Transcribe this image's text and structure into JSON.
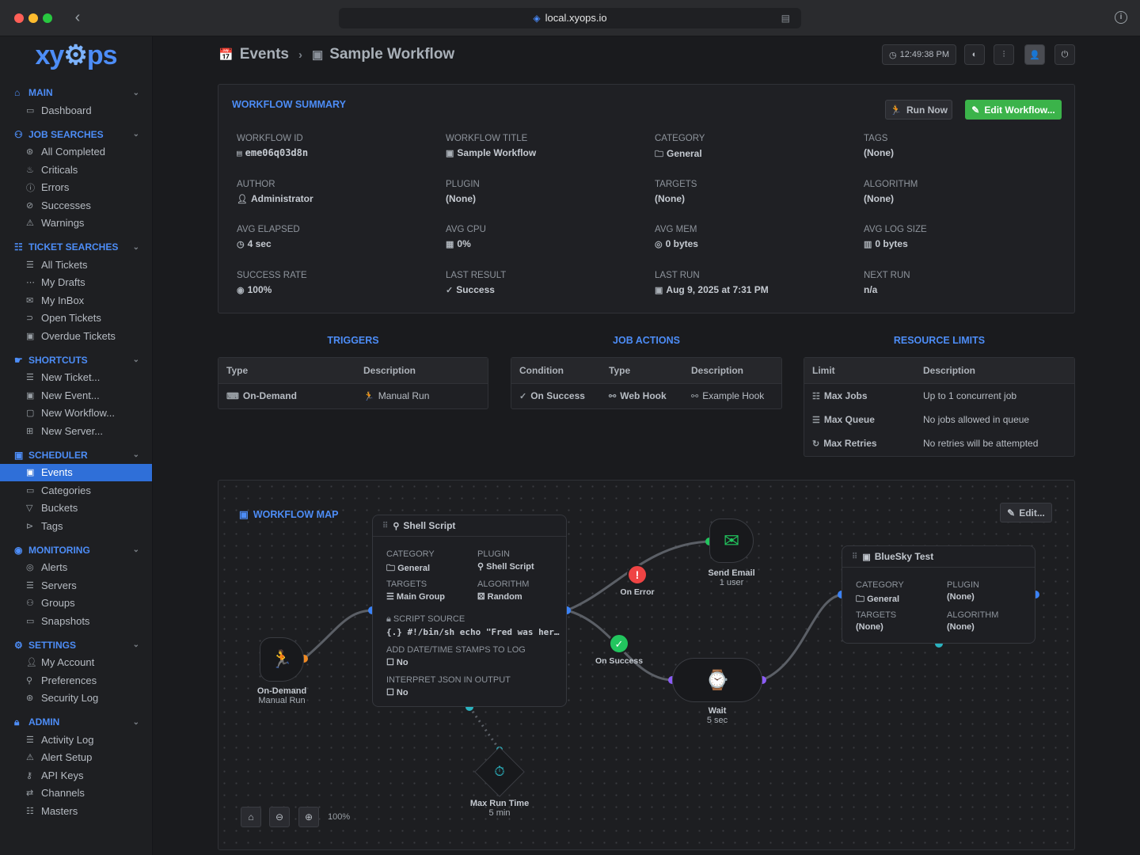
{
  "browser": {
    "url": "local.xyops.io"
  },
  "logo": {
    "text_a": "xy",
    "text_b": "ps"
  },
  "sidebar": {
    "sections": [
      {
        "title": "MAIN",
        "items": [
          "Dashboard"
        ]
      },
      {
        "title": "JOB SEARCHES",
        "items": [
          "All Completed",
          "Criticals",
          "Errors",
          "Successes",
          "Warnings"
        ]
      },
      {
        "title": "TICKET SEARCHES",
        "items": [
          "All Tickets",
          "My Drafts",
          "My InBox",
          "Open Tickets",
          "Overdue Tickets"
        ]
      },
      {
        "title": "SHORTCUTS",
        "items": [
          "New Ticket...",
          "New Event...",
          "New Workflow...",
          "New Server..."
        ]
      },
      {
        "title": "SCHEDULER",
        "items": [
          "Events",
          "Categories",
          "Buckets",
          "Tags"
        ]
      },
      {
        "title": "MONITORING",
        "items": [
          "Alerts",
          "Servers",
          "Groups",
          "Snapshots"
        ]
      },
      {
        "title": "SETTINGS",
        "items": [
          "My Account",
          "Preferences",
          "Security Log"
        ]
      },
      {
        "title": "ADMIN",
        "items": [
          "Activity Log",
          "Alert Setup",
          "API Keys",
          "Channels",
          "Masters"
        ]
      }
    ],
    "active_item": "Events"
  },
  "header": {
    "crumb_parent": "Events",
    "crumb_current": "Sample Workflow",
    "clock": "12:49:38 PM"
  },
  "summary": {
    "title": "WORKFLOW SUMMARY",
    "run_now": "Run Now",
    "edit_workflow": "Edit Workflow...",
    "fields": {
      "workflow_id": {
        "label": "WORKFLOW ID",
        "value": "eme06q03d8n"
      },
      "workflow_title": {
        "label": "WORKFLOW TITLE",
        "value": "Sample Workflow"
      },
      "category": {
        "label": "CATEGORY",
        "value": "General"
      },
      "tags": {
        "label": "TAGS",
        "value": "(None)"
      },
      "author": {
        "label": "AUTHOR",
        "value": "Administrator"
      },
      "plugin": {
        "label": "PLUGIN",
        "value": "(None)"
      },
      "targets": {
        "label": "TARGETS",
        "value": "(None)"
      },
      "algorithm": {
        "label": "ALGORITHM",
        "value": "(None)"
      },
      "avg_elapsed": {
        "label": "AVG ELAPSED",
        "value": "4 sec"
      },
      "avg_cpu": {
        "label": "AVG CPU",
        "value": "0%"
      },
      "avg_mem": {
        "label": "AVG MEM",
        "value": "0 bytes"
      },
      "avg_log": {
        "label": "AVG LOG SIZE",
        "value": "0 bytes"
      },
      "success_rate": {
        "label": "SUCCESS RATE",
        "value": "100%"
      },
      "last_result": {
        "label": "LAST RESULT",
        "value": "Success"
      },
      "last_run": {
        "label": "LAST RUN",
        "value": "Aug 9, 2025 at 7:31 PM"
      },
      "next_run": {
        "label": "NEXT RUN",
        "value": "n/a"
      }
    }
  },
  "triggers": {
    "title": "TRIGGERS",
    "headers": [
      "Type",
      "Description"
    ],
    "rows": [
      [
        "On-Demand",
        "Manual Run"
      ]
    ]
  },
  "job_actions": {
    "title": "JOB ACTIONS",
    "headers": [
      "Condition",
      "Type",
      "Description"
    ],
    "rows": [
      [
        "On Success",
        "Web Hook",
        "Example Hook"
      ]
    ]
  },
  "resource_limits": {
    "title": "RESOURCE LIMITS",
    "headers": [
      "Limit",
      "Description"
    ],
    "rows": [
      [
        "Max Jobs",
        "Up to 1 concurrent job"
      ],
      [
        "Max Queue",
        "No jobs allowed in queue"
      ],
      [
        "Max Retries",
        "No retries will be attempted"
      ]
    ]
  },
  "workflow_map": {
    "title": "WORKFLOW MAP",
    "edit": "Edit...",
    "zoom": "100%",
    "trigger_node": {
      "name": "On-Demand",
      "sub": "Manual Run"
    },
    "shell_node": {
      "title": "Shell Script",
      "category_label": "CATEGORY",
      "category": "General",
      "plugin_label": "PLUGIN",
      "plugin": "Shell Script",
      "targets_label": "TARGETS",
      "targets": "Main Group",
      "algorithm_label": "ALGORITHM",
      "algorithm": "Random",
      "source_label": "SCRIPT SOURCE",
      "source": "#!/bin/sh echo \"Fred was her…",
      "stamps_label": "ADD DATE/TIME STAMPS TO LOG",
      "stamps": "No",
      "json_label": "INTERPRET JSON IN OUTPUT",
      "json": "No"
    },
    "on_error": "On Error",
    "on_success": "On Success",
    "email_node": {
      "name": "Send Email",
      "sub": "1 user"
    },
    "wait_node": {
      "name": "Wait",
      "sub": "5 sec"
    },
    "maxrun_node": {
      "name": "Max Run Time",
      "sub": "5 min"
    },
    "bluesky_node": {
      "title": "BlueSky Test",
      "category_label": "CATEGORY",
      "category": "General",
      "plugin_label": "PLUGIN",
      "plugin": "(None)",
      "targets_label": "TARGETS",
      "targets": "(None)",
      "algorithm_label": "ALGORITHM",
      "algorithm": "(None)"
    },
    "colors": {
      "link": "#5b5f66",
      "blue": "#3b82f6",
      "orange": "#f08a24",
      "purple": "#8b5cf6",
      "green": "#22c55e",
      "red": "#ef4444",
      "teal": "#2bb3c0"
    }
  }
}
